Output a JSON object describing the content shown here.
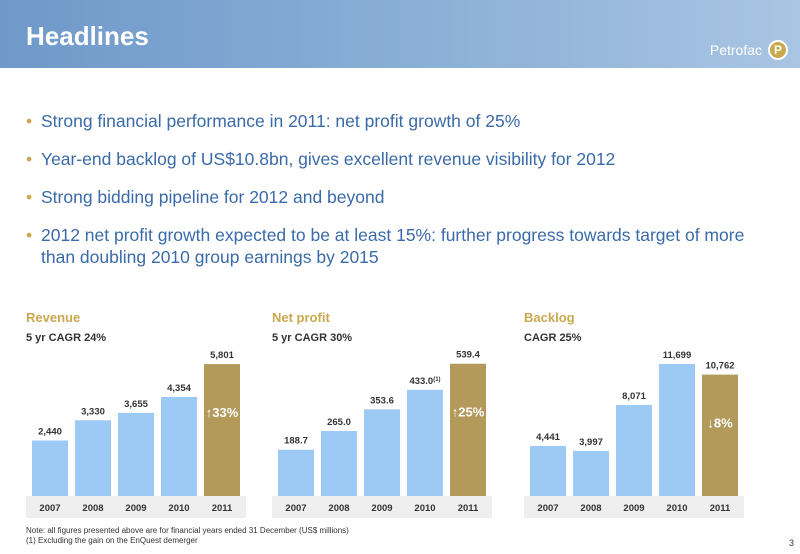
{
  "header": {
    "title": "Headlines",
    "brand": "Petrofac",
    "logo_letter": "P"
  },
  "bullets": [
    "Strong financial performance in 2011: net profit growth of 25%",
    "Year-end backlog of US$10.8bn, gives excellent revenue visibility for 2012",
    "Strong bidding pipeline for 2012 and beyond",
    "2012 net profit growth expected to be at least 15%: further progress towards target of more than doubling 2010 group earnings by 2015"
  ],
  "bullet_glyph": "•",
  "chart_data": [
    {
      "type": "bar",
      "title": "Revenue",
      "subtitle": "5 yr CAGR 24%",
      "categories": [
        "2007",
        "2008",
        "2009",
        "2010",
        "2011"
      ],
      "values": [
        2440,
        3330,
        3655,
        4354,
        5801
      ],
      "labels": [
        "2,440",
        "3,330",
        "3,655",
        "4,354",
        "5,801"
      ],
      "highlight_index": 4,
      "change_label": "↑33%",
      "ylim": [
        0,
        6200
      ]
    },
    {
      "type": "bar",
      "title": "Net profit",
      "subtitle": "5 yr CAGR 30%",
      "categories": [
        "2007",
        "2008",
        "2009",
        "2010",
        "2011"
      ],
      "values": [
        188.7,
        265.0,
        353.6,
        433.0,
        539.4
      ],
      "labels": [
        "188.7",
        "265.0",
        "353.6",
        "433.0",
        "539.4"
      ],
      "footnote_marks": [
        "",
        "",
        "",
        "(1)",
        ""
      ],
      "highlight_index": 4,
      "change_label": "↑25%",
      "ylim": [
        0,
        575
      ]
    },
    {
      "type": "bar",
      "title": "Backlog",
      "subtitle": "CAGR 25%",
      "categories": [
        "2007",
        "2008",
        "2009",
        "2010",
        "2011"
      ],
      "values": [
        4441,
        3997,
        8071,
        11699,
        10762
      ],
      "labels": [
        "4,441",
        "3,997",
        "8,071",
        "11,699",
        "10,762"
      ],
      "highlight_index": 4,
      "change_label": "↓8%",
      "ylim": [
        0,
        12500
      ]
    }
  ],
  "colors": {
    "bar": "#9ccaf5",
    "highlight": "#b39a5a",
    "axis_bg": "#efefef",
    "accent": "#c9a84e",
    "text_blue": "#3a6aa8"
  },
  "notes": {
    "line1": "Note: all figures presented above are for financial years ended 31 December  (US$ millions)",
    "line2": "(1)    Excluding the gain on the EnQuest demerger"
  },
  "page_number": "3"
}
